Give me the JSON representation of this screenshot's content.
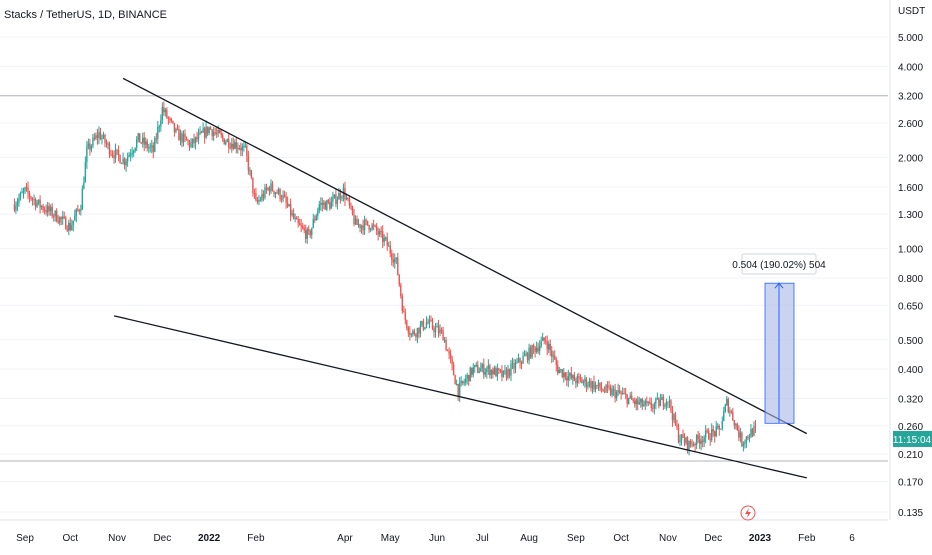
{
  "header": {
    "symbol_title": "Stacks / TetherUS, 1D, BINANCE"
  },
  "price_axis": {
    "currency": "USDT",
    "ticks": [
      "5.000",
      "4.000",
      "3.200",
      "2.600",
      "2.000",
      "1.600",
      "1.300",
      "1.000",
      "0.800",
      "0.650",
      "0.500",
      "0.400",
      "0.320",
      "0.260",
      "0.210",
      "0.170",
      "0.135"
    ],
    "current_time_label": "11:15:04",
    "current_price": 0.25,
    "reference_price": 3.2
  },
  "time_axis": {
    "labels": [
      {
        "text": "Sep",
        "bold": false
      },
      {
        "text": "Oct",
        "bold": false
      },
      {
        "text": "Nov",
        "bold": false
      },
      {
        "text": "Dec",
        "bold": false
      },
      {
        "text": "2022",
        "bold": true
      },
      {
        "text": "Feb",
        "bold": false
      },
      {
        "text": "Apr",
        "bold": false
      },
      {
        "text": "May",
        "bold": false
      },
      {
        "text": "Jun",
        "bold": false
      },
      {
        "text": "Jul",
        "bold": false
      },
      {
        "text": "Aug",
        "bold": false
      },
      {
        "text": "Sep",
        "bold": false
      },
      {
        "text": "Oct",
        "bold": false
      },
      {
        "text": "Nov",
        "bold": false
      },
      {
        "text": "Dec",
        "bold": false
      },
      {
        "text": "2023",
        "bold": true
      },
      {
        "text": "Feb",
        "bold": false
      },
      {
        "text": "6",
        "bold": false
      }
    ]
  },
  "measure_tool": {
    "label": "0.504 (190.02%) 504",
    "from_price": 0.265,
    "to_price": 0.769
  },
  "colors": {
    "up": "#26a69a",
    "down": "#ef5350",
    "trendline": "#131722",
    "measure_fill": "#a7b8e8",
    "measure_stroke": "#2962ff",
    "price_badge": "#26a69a",
    "grid": "#f0f3fa",
    "axis_text": "#131722"
  },
  "chart_data": {
    "type": "candlestick",
    "title": "Stacks / TetherUS, 1D, BINANCE",
    "y_scale": "log",
    "ylim": [
      0.12,
      6.2
    ],
    "x_range": [
      "2021-08-25",
      "2023-02-20"
    ],
    "series": [
      {
        "name": "STXUSDT close",
        "points": [
          [
            "2021-08-25",
            1.4
          ],
          [
            "2021-09-01",
            1.55
          ],
          [
            "2021-09-10",
            1.4
          ],
          [
            "2021-09-20",
            1.3
          ],
          [
            "2021-10-01",
            1.18
          ],
          [
            "2021-10-08",
            1.4
          ],
          [
            "2021-10-12",
            2.1
          ],
          [
            "2021-10-20",
            2.4
          ],
          [
            "2021-10-28",
            2.1
          ],
          [
            "2021-11-06",
            1.95
          ],
          [
            "2021-11-15",
            2.3
          ],
          [
            "2021-11-25",
            2.1
          ],
          [
            "2021-12-01",
            2.9
          ],
          [
            "2021-12-10",
            2.4
          ],
          [
            "2021-12-20",
            2.2
          ],
          [
            "2022-01-01",
            2.5
          ],
          [
            "2022-01-10",
            2.3
          ],
          [
            "2022-01-20",
            2.2
          ],
          [
            "2022-01-25",
            2.1
          ],
          [
            "2022-02-01",
            1.4
          ],
          [
            "2022-02-10",
            1.6
          ],
          [
            "2022-02-18",
            1.5
          ],
          [
            "2022-02-28",
            1.2
          ],
          [
            "2022-03-08",
            1.1
          ],
          [
            "2022-03-15",
            1.4
          ],
          [
            "2022-03-22",
            1.4
          ],
          [
            "2022-03-31",
            1.55
          ],
          [
            "2022-04-08",
            1.2
          ],
          [
            "2022-04-18",
            1.2
          ],
          [
            "2022-04-28",
            1.05
          ],
          [
            "2022-05-05",
            0.9
          ],
          [
            "2022-05-10",
            0.6
          ],
          [
            "2022-05-15",
            0.52
          ],
          [
            "2022-05-25",
            0.57
          ],
          [
            "2022-06-05",
            0.52
          ],
          [
            "2022-06-15",
            0.34
          ],
          [
            "2022-06-25",
            0.4
          ],
          [
            "2022-07-05",
            0.4
          ],
          [
            "2022-07-15",
            0.38
          ],
          [
            "2022-07-25",
            0.42
          ],
          [
            "2022-08-05",
            0.47
          ],
          [
            "2022-08-12",
            0.5
          ],
          [
            "2022-08-20",
            0.4
          ],
          [
            "2022-08-30",
            0.37
          ],
          [
            "2022-09-10",
            0.36
          ],
          [
            "2022-09-20",
            0.34
          ],
          [
            "2022-10-01",
            0.33
          ],
          [
            "2022-10-10",
            0.31
          ],
          [
            "2022-10-20",
            0.3
          ],
          [
            "2022-11-01",
            0.32
          ],
          [
            "2022-11-08",
            0.24
          ],
          [
            "2022-11-15",
            0.225
          ],
          [
            "2022-11-25",
            0.24
          ],
          [
            "2022-12-05",
            0.25
          ],
          [
            "2022-12-10",
            0.31
          ],
          [
            "2022-12-15",
            0.27
          ],
          [
            "2022-12-20",
            0.23
          ],
          [
            "2022-12-27",
            0.25
          ]
        ]
      }
    ],
    "trendlines": [
      {
        "name": "upper",
        "from": [
          "2021-11-05",
          3.65
        ],
        "to": [
          "2023-02-01",
          0.245
        ]
      },
      {
        "name": "lower",
        "from": [
          "2021-10-30",
          0.6
        ],
        "to": [
          "2023-02-01",
          0.175
        ]
      }
    ]
  }
}
